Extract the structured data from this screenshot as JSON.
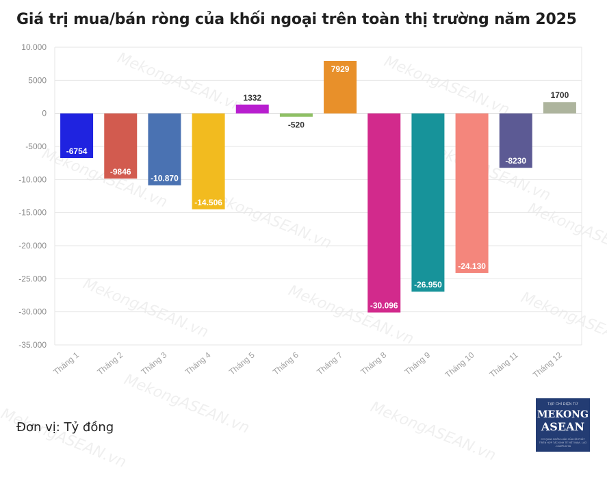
{
  "chart_data": {
    "type": "bar",
    "title": "Giá trị mua/bán ròng của khối ngoại trên toàn thị trường năm 2025",
    "categories": [
      "Tháng 1",
      "Tháng 2",
      "Tháng 3",
      "Tháng 4",
      "Tháng 5",
      "Tháng 6",
      "Tháng 7",
      "Tháng 8",
      "Tháng 9",
      "Tháng 10",
      "Tháng 11",
      "Tháng 12"
    ],
    "values": [
      -6754,
      -9846,
      -10870,
      -14506,
      1332,
      -520,
      7929,
      -30096,
      -26950,
      -24130,
      -8230,
      1700
    ],
    "value_labels": [
      "-6754",
      "-9846",
      "-10.870",
      "-14.506",
      "1332",
      "-520",
      "7929",
      "-30.096",
      "-26.950",
      "-24.130",
      "-8230",
      "1700"
    ],
    "colors": [
      "#1f23e0",
      "#d25b4f",
      "#4a72b2",
      "#f2bb1f",
      "#b81ecf",
      "#8fc064",
      "#e8902a",
      "#d22a8c",
      "#17939a",
      "#f4867c",
      "#5c5a94",
      "#adb49d"
    ],
    "y_ticks": [
      10000,
      5000,
      0,
      -5000,
      -10000,
      -15000,
      -20000,
      -25000,
      -30000,
      -35000
    ],
    "y_tick_labels": [
      "10.000",
      "5000",
      "0",
      "-5000",
      "-10.000",
      "-15.000",
      "-20.000",
      "-25.000",
      "-30.000",
      "-35.000"
    ],
    "ylim": [
      -35000,
      10000
    ],
    "xlabel": "",
    "ylabel": "",
    "grid": true
  },
  "unit_label": "Đơn vị: Tỷ đồng",
  "watermark": "MekongASEAN.vn",
  "logo": {
    "small": "TẠP CHÍ ĐIỆN TỬ",
    "line1": "MEKONG",
    "line2": "ASEAN",
    "tagline": "CƠ QUAN NGÔN LUẬN CỦA HỘI PHÁT TRIỂN HỢP TÁC KINH TẾ VIỆT NAM - LÀO - CAMPUCHIA"
  }
}
